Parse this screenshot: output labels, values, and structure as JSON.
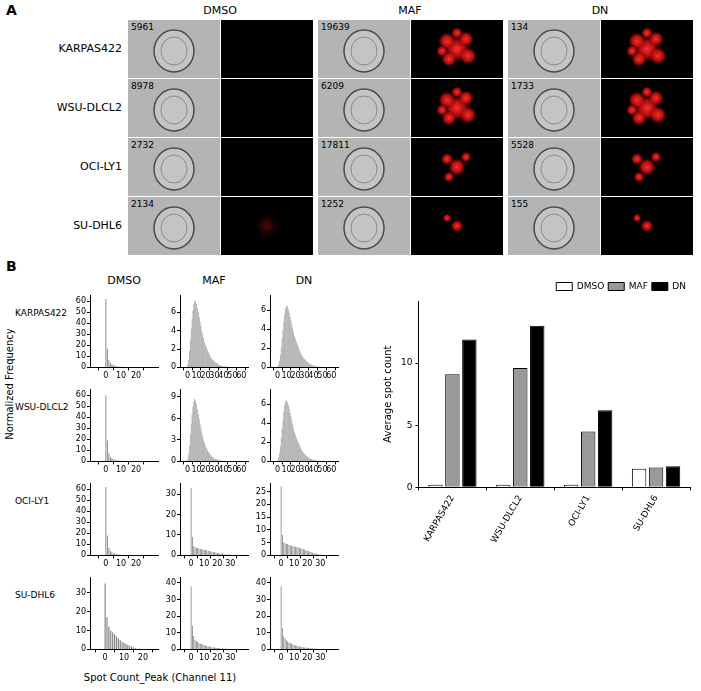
{
  "figure": {
    "panels": [
      "A",
      "B"
    ],
    "panel_a": {
      "columns": [
        "DMSO",
        "MAF",
        "DN"
      ],
      "rows": [
        "KARPAS422",
        "WSU-DLCL2",
        "OCI-LY1",
        "SU-DHL6"
      ],
      "image_ids": [
        [
          5961,
          19639,
          134
        ],
        [
          8978,
          6209,
          1733
        ],
        [
          2732,
          17811,
          5528
        ],
        [
          2134,
          1252,
          155
        ]
      ]
    },
    "panel_b": {
      "columns": [
        "DMSO",
        "MAF",
        "DN"
      ],
      "rows": [
        "KARPAS422",
        "WSU-DLCL2",
        "OCI-LY1",
        "SU-DHL6"
      ],
      "ylabel": "Normalized Frequency",
      "xlabel": "Spot Count_Peak (Channel 11)"
    }
  },
  "chart_data": [
    {
      "type": "histogram",
      "color": "#808080",
      "grid": false,
      "bins": [
        -0.5,
        0.5,
        1.5,
        2.5,
        3.5,
        4.5,
        5.5,
        6.5,
        7.5,
        8.5,
        9.5,
        10.5,
        11.5,
        12.5,
        13.5,
        14.5,
        15.5,
        16.5,
        17.5,
        18.5,
        19.5,
        20.5,
        21.5,
        22.5,
        23.5,
        24.5
      ],
      "values": [
        62,
        17,
        7,
        4,
        2.8,
        2,
        1.5,
        1.1,
        0.8,
        0.6,
        0.5,
        0.4,
        0.3,
        0.3,
        0.2,
        0.2,
        0.15,
        0.1,
        0.1,
        0.1,
        0.08,
        0.06,
        0.05,
        0.05,
        0.04
      ],
      "xlim": [
        -3,
        27
      ],
      "xticks": [
        0,
        10,
        20
      ],
      "ylim": [
        0,
        65
      ],
      "yticks": [
        0,
        10,
        20,
        30,
        40,
        50,
        60
      ]
    },
    {
      "type": "histogram",
      "color": "#808080",
      "grid": false,
      "bins": [
        -0.5,
        0.5,
        1.5,
        2.5,
        3.5,
        4.5,
        5.5,
        6.5,
        7.5,
        8.5,
        9.5,
        10.5,
        11.5,
        12.5,
        13.5,
        14.5,
        15.5,
        16.5,
        17.5,
        18.5,
        19.5,
        20.5,
        21.5,
        22.5,
        23.5,
        24.5,
        25.5,
        26.5,
        27.5,
        28.5,
        29.5,
        30.5,
        31.5,
        32.5,
        33.5,
        34.5,
        35.5,
        36.5,
        37.5,
        38.5,
        39.5,
        40.5,
        41.5,
        42.5,
        43.5,
        44.5,
        45.5,
        46.5,
        47.5,
        48.5,
        49.5,
        50.5,
        51.5,
        52.5,
        53.5,
        54.5,
        55.5
      ],
      "values": [
        0.3,
        0.8,
        1.8,
        3.0,
        4.2,
        5.3,
        6.2,
        6.9,
        7.3,
        7.2,
        6.9,
        6.5,
        6.0,
        5.5,
        5.0,
        4.5,
        4.0,
        3.6,
        3.2,
        2.8,
        2.5,
        2.2,
        1.9,
        1.7,
        1.5,
        1.3,
        1.1,
        1.0,
        0.85,
        0.75,
        0.65,
        0.55,
        0.5,
        0.42,
        0.36,
        0.3,
        0.26,
        0.22,
        0.19,
        0.16,
        0.14,
        0.12,
        0.1,
        0.09,
        0.08,
        0.07,
        0.06,
        0.05,
        0.04,
        0.04,
        0.03,
        0.03,
        0.02,
        0.02,
        0.02,
        0.01
      ],
      "xlim": [
        -3,
        62
      ],
      "xticks": [
        0,
        10,
        20,
        30,
        40,
        50,
        60
      ],
      "ylim": [
        0,
        7.8
      ],
      "yticks": [
        0,
        2,
        4,
        6
      ]
    },
    {
      "type": "histogram",
      "color": "#808080",
      "grid": false,
      "bins": [
        -0.5,
        0.5,
        1.5,
        2.5,
        3.5,
        4.5,
        5.5,
        6.5,
        7.5,
        8.5,
        9.5,
        10.5,
        11.5,
        12.5,
        13.5,
        14.5,
        15.5,
        16.5,
        17.5,
        18.5,
        19.5,
        20.5,
        21.5,
        22.5,
        23.5,
        24.5,
        25.5,
        26.5,
        27.5,
        28.5,
        29.5,
        30.5,
        31.5,
        32.5,
        33.5,
        34.5,
        35.5,
        36.5,
        37.5,
        38.5,
        39.5,
        40.5,
        41.5,
        42.5,
        43.5,
        44.5,
        45.5,
        46.5,
        47.5,
        48.5,
        49.5,
        50.5,
        51.5,
        52.5,
        53.5,
        54.5,
        55.5
      ],
      "values": [
        0.1,
        0.3,
        0.7,
        1.3,
        2.1,
        3.0,
        3.9,
        4.8,
        5.6,
        6.2,
        6.5,
        6.4,
        6.1,
        5.7,
        5.3,
        4.9,
        4.5,
        4.1,
        3.7,
        3.3,
        3.0,
        2.7,
        2.4,
        2.1,
        1.9,
        1.7,
        1.5,
        1.3,
        1.15,
        1.0,
        0.9,
        0.8,
        0.7,
        0.6,
        0.52,
        0.45,
        0.39,
        0.34,
        0.29,
        0.25,
        0.21,
        0.18,
        0.15,
        0.13,
        0.11,
        0.09,
        0.08,
        0.07,
        0.06,
        0.05,
        0.04,
        0.03,
        0.03,
        0.02,
        0.02,
        0.01
      ],
      "xlim": [
        -3,
        62
      ],
      "xticks": [
        0,
        10,
        20,
        30,
        40,
        50,
        60
      ],
      "ylim": [
        0,
        7.5
      ],
      "yticks": [
        0,
        2,
        4,
        6
      ]
    },
    {
      "type": "histogram",
      "color": "#808080",
      "grid": false,
      "bins": [
        -0.5,
        0.5,
        1.5,
        2.5,
        3.5,
        4.5,
        5.5,
        6.5,
        7.5,
        8.5,
        9.5,
        10.5,
        11.5,
        12.5,
        13.5,
        14.5,
        15.5,
        16.5,
        17.5,
        18.5,
        19.5,
        20.5,
        21.5,
        22.5,
        23.5,
        24.5
      ],
      "values": [
        60,
        19,
        7.5,
        4,
        2.8,
        2,
        1.4,
        1,
        0.8,
        0.6,
        0.5,
        0.4,
        0.3,
        0.25,
        0.2,
        0.15,
        0.12,
        0.1,
        0.08,
        0.06,
        0.05,
        0.04,
        0.03,
        0.03,
        0.02
      ],
      "xlim": [
        -3,
        27
      ],
      "xticks": [
        0,
        10,
        20
      ],
      "ylim": [
        0,
        65
      ],
      "yticks": [
        0,
        10,
        20,
        30,
        40,
        50,
        60
      ]
    },
    {
      "type": "histogram",
      "color": "#808080",
      "grid": false,
      "bins": [
        -0.5,
        0.5,
        1.5,
        2.5,
        3.5,
        4.5,
        5.5,
        6.5,
        7.5,
        8.5,
        9.5,
        10.5,
        11.5,
        12.5,
        13.5,
        14.5,
        15.5,
        16.5,
        17.5,
        18.5,
        19.5,
        20.5,
        21.5,
        22.5,
        23.5,
        24.5,
        25.5,
        26.5,
        27.5,
        28.5,
        29.5,
        30.5,
        31.5,
        32.5,
        33.5,
        34.5,
        35.5,
        36.5,
        37.5,
        38.5,
        39.5,
        40.5,
        41.5,
        42.5,
        43.5,
        44.5,
        45.5,
        46.5,
        47.5,
        48.5,
        49.5,
        50.5,
        51.5,
        52.5,
        53.5,
        54.5,
        55.5
      ],
      "values": [
        0.3,
        1.0,
        2.2,
        3.8,
        5.3,
        6.6,
        7.6,
        8.3,
        8.7,
        8.5,
        8.0,
        7.3,
        6.6,
        5.9,
        5.2,
        4.6,
        4.0,
        3.5,
        3.0,
        2.6,
        2.2,
        1.9,
        1.6,
        1.4,
        1.2,
        1.0,
        0.85,
        0.72,
        0.6,
        0.5,
        0.42,
        0.35,
        0.3,
        0.25,
        0.21,
        0.18,
        0.15,
        0.12,
        0.1,
        0.08,
        0.07,
        0.06,
        0.05,
        0.04,
        0.03,
        0.03,
        0.02,
        0.02,
        0.02,
        0.01,
        0.01,
        0.01,
        0.01,
        0.01,
        0.01,
        0.01
      ],
      "xlim": [
        -3,
        62
      ],
      "xticks": [
        0,
        10,
        20,
        30,
        40,
        50,
        60
      ],
      "ylim": [
        0,
        10
      ],
      "yticks": [
        0,
        3,
        6,
        9
      ]
    },
    {
      "type": "histogram",
      "color": "#808080",
      "grid": false,
      "bins": [
        -0.5,
        0.5,
        1.5,
        2.5,
        3.5,
        4.5,
        5.5,
        6.5,
        7.5,
        8.5,
        9.5,
        10.5,
        11.5,
        12.5,
        13.5,
        14.5,
        15.5,
        16.5,
        17.5,
        18.5,
        19.5,
        20.5,
        21.5,
        22.5,
        23.5,
        24.5,
        25.5,
        26.5,
        27.5,
        28.5,
        29.5,
        30.5,
        31.5,
        32.5,
        33.5,
        34.5,
        35.5,
        36.5,
        37.5,
        38.5,
        39.5,
        40.5,
        41.5,
        42.5,
        43.5,
        44.5,
        45.5,
        46.5,
        47.5,
        48.5,
        49.5,
        50.5,
        51.5,
        52.5,
        53.5,
        54.5,
        55.5
      ],
      "values": [
        0.1,
        0.4,
        0.9,
        1.6,
        2.5,
        3.4,
        4.3,
        5.2,
        5.9,
        6.3,
        6.4,
        6.2,
        5.9,
        5.5,
        5.1,
        4.7,
        4.3,
        3.9,
        3.5,
        3.1,
        2.8,
        2.5,
        2.2,
        2.0,
        1.8,
        1.6,
        1.4,
        1.2,
        1.05,
        0.9,
        0.8,
        0.7,
        0.6,
        0.52,
        0.45,
        0.39,
        0.33,
        0.28,
        0.24,
        0.2,
        0.17,
        0.15,
        0.13,
        0.11,
        0.09,
        0.08,
        0.07,
        0.06,
        0.05,
        0.04,
        0.04,
        0.03,
        0.03,
        0.02,
        0.02,
        0.01
      ],
      "xlim": [
        -3,
        62
      ],
      "xticks": [
        0,
        10,
        20,
        30,
        40,
        50,
        60
      ],
      "ylim": [
        0,
        7.5
      ],
      "yticks": [
        0,
        2,
        4,
        6
      ]
    },
    {
      "type": "histogram",
      "color": "#808080",
      "grid": false,
      "bins": [
        -0.5,
        0.5,
        1.5,
        2.5,
        3.5,
        4.5,
        5.5,
        6.5,
        7.5,
        8.5,
        9.5,
        10.5,
        11.5,
        12.5,
        13.5,
        14.5,
        15.5,
        16.5,
        17.5,
        18.5,
        19.5,
        20.5,
        21.5,
        22.5,
        23.5,
        24.5
      ],
      "values": [
        62,
        18,
        7,
        4,
        2.7,
        1.9,
        1.4,
        1,
        0.8,
        0.6,
        0.5,
        0.4,
        0.3,
        0.25,
        0.2,
        0.15,
        0.12,
        0.1,
        0.08,
        0.06,
        0.05,
        0.04,
        0.03,
        0.03,
        0.02
      ],
      "xlim": [
        -3,
        27
      ],
      "xticks": [
        0,
        10,
        20
      ],
      "ylim": [
        0,
        65
      ],
      "yticks": [
        0,
        10,
        20,
        30,
        40,
        50,
        60
      ]
    },
    {
      "type": "histogram",
      "color": "#808080",
      "grid": false,
      "bins": [
        -0.5,
        0.5,
        1.5,
        2.5,
        3.5,
        4.5,
        5.5,
        6.5,
        7.5,
        8.5,
        9.5,
        10.5,
        11.5,
        12.5,
        13.5,
        14.5,
        15.5,
        16.5,
        17.5,
        18.5,
        19.5,
        20.5,
        21.5,
        22.5,
        23.5,
        24.5,
        25.5,
        26.5,
        27.5,
        28.5,
        29.5,
        30.5,
        31.5,
        32.5,
        33.5
      ],
      "values": [
        33,
        9,
        4.5,
        4.0,
        3.8,
        3.6,
        3.4,
        3.2,
        3.0,
        2.9,
        2.7,
        2.6,
        2.4,
        2.3,
        2.1,
        2.0,
        1.8,
        1.7,
        1.5,
        1.4,
        1.2,
        1.1,
        1.0,
        0.9,
        0.8,
        0.7,
        0.6,
        0.5,
        0.45,
        0.4,
        0.35,
        0.3,
        0.25,
        0.2
      ],
      "xlim": [
        -2,
        37
      ],
      "xticks": [
        0,
        10,
        20,
        30
      ],
      "ylim": [
        0,
        35
      ],
      "yticks": [
        0,
        10,
        20,
        30
      ]
    },
    {
      "type": "histogram",
      "color": "#808080",
      "grid": false,
      "bins": [
        -0.5,
        0.5,
        1.5,
        2.5,
        3.5,
        4.5,
        5.5,
        6.5,
        7.5,
        8.5,
        9.5,
        10.5,
        11.5,
        12.5,
        13.5,
        14.5,
        15.5,
        16.5,
        17.5,
        18.5,
        19.5,
        20.5,
        21.5,
        22.5,
        23.5,
        24.5,
        25.5,
        26.5,
        27.5,
        28.5,
        29.5,
        30.5,
        31.5,
        32.5,
        33.5
      ],
      "values": [
        27,
        8,
        5,
        4.8,
        4.6,
        4.4,
        4.2,
        4.0,
        3.8,
        3.6,
        3.5,
        3.4,
        3.3,
        3.1,
        3.0,
        2.8,
        2.6,
        2.4,
        2.2,
        2.0,
        1.8,
        1.6,
        1.4,
        1.2,
        1.0,
        0.85,
        0.7,
        0.6,
        0.5,
        0.4,
        0.3,
        0.25,
        0.2,
        0.15
      ],
      "xlim": [
        -2,
        37
      ],
      "xticks": [
        0,
        10,
        20,
        30
      ],
      "ylim": [
        0,
        28
      ],
      "yticks": [
        0,
        5,
        10,
        15,
        20,
        25
      ]
    },
    {
      "type": "histogram",
      "color": "#808080",
      "grid": false,
      "bins": [
        -0.5,
        0.5,
        1.5,
        2.5,
        3.5,
        4.5,
        5.5,
        6.5,
        7.5,
        8.5,
        9.5,
        10.5,
        11.5,
        12.5,
        13.5,
        14.5,
        15.5,
        16.5,
        17.5,
        18.5,
        19.5
      ],
      "values": [
        35,
        17,
        12,
        10,
        9,
        8,
        7,
        6,
        5,
        4,
        3.5,
        3,
        2.5,
        2,
        1.5,
        1,
        0.6,
        0.4,
        0.3,
        0.2
      ],
      "xlim": [
        -2,
        22
      ],
      "xticks": [
        0,
        10,
        20
      ],
      "ylim": [
        0,
        38
      ],
      "yticks": [
        0,
        10,
        20,
        30
      ]
    },
    {
      "type": "histogram",
      "color": "#808080",
      "grid": false,
      "bins": [
        -0.5,
        0.5,
        1.5,
        2.5,
        3.5,
        4.5,
        5.5,
        6.5,
        7.5,
        8.5,
        9.5,
        10.5,
        11.5,
        12.5,
        13.5,
        14.5,
        15.5,
        16.5,
        17.5,
        18.5,
        19.5,
        20.5,
        21.5,
        22.5,
        23.5,
        24.5,
        25.5,
        26.5,
        27.5,
        28.5,
        29.5,
        30.5,
        31.5,
        32.5,
        33.5
      ],
      "values": [
        38,
        14,
        8,
        6,
        5,
        4.5,
        4,
        3.6,
        3.2,
        2.9,
        2.6,
        2.3,
        2.1,
        1.9,
        1.7,
        1.5,
        1.3,
        1.2,
        1.1,
        1.0,
        0.9,
        0.8,
        0.7,
        0.6,
        0.55,
        0.5,
        0.45,
        0.4,
        0.35,
        0.3,
        0.25,
        0.2,
        0.15,
        0.1
      ],
      "xlim": [
        -2,
        37
      ],
      "xticks": [
        0,
        10,
        20,
        30
      ],
      "ylim": [
        0,
        43
      ],
      "yticks": [
        0,
        10,
        20,
        30,
        40
      ]
    },
    {
      "type": "histogram",
      "color": "#808080",
      "grid": false,
      "bins": [
        -0.5,
        0.5,
        1.5,
        2.5,
        3.5,
        4.5,
        5.5,
        6.5,
        7.5,
        8.5,
        9.5,
        10.5,
        11.5,
        12.5,
        13.5,
        14.5,
        15.5,
        16.5,
        17.5,
        18.5,
        19.5,
        20.5,
        21.5,
        22.5,
        23.5,
        24.5,
        25.5,
        26.5,
        27.5,
        28.5,
        29.5,
        30.5,
        31.5,
        32.5,
        33.5
      ],
      "values": [
        38,
        13,
        8,
        6.5,
        5.5,
        4.8,
        4.2,
        3.8,
        3.4,
        3.0,
        2.7,
        2.4,
        2.2,
        2.0,
        1.8,
        1.6,
        1.4,
        1.3,
        1.2,
        1.1,
        1.0,
        0.9,
        0.8,
        0.7,
        0.6,
        0.55,
        0.5,
        0.45,
        0.4,
        0.35,
        0.3,
        0.25,
        0.2,
        0.15
      ],
      "xlim": [
        -2,
        37
      ],
      "xticks": [
        0,
        10,
        20,
        30
      ],
      "ylim": [
        0,
        43
      ],
      "yticks": [
        0,
        10,
        20,
        30,
        40
      ]
    },
    {
      "type": "bar",
      "ylabel": "Average spot count",
      "grid": false,
      "legend": "top-right",
      "categories": [
        "KARPAS422",
        "WSU-DLCL2",
        "OCI-LY1",
        "SU-DHL6"
      ],
      "series": [
        {
          "name": "DMSO",
          "color": "#ffffff",
          "values": [
            0.2,
            0.2,
            0.2,
            1.5
          ]
        },
        {
          "name": "MAF",
          "color": "#999999",
          "values": [
            9.1,
            9.6,
            4.5,
            1.6
          ]
        },
        {
          "name": "DN",
          "color": "#000000",
          "values": [
            11.9,
            13.0,
            6.2,
            1.7
          ]
        }
      ],
      "ylim": [
        0,
        15
      ],
      "yticks": [
        0,
        5,
        10
      ]
    }
  ]
}
